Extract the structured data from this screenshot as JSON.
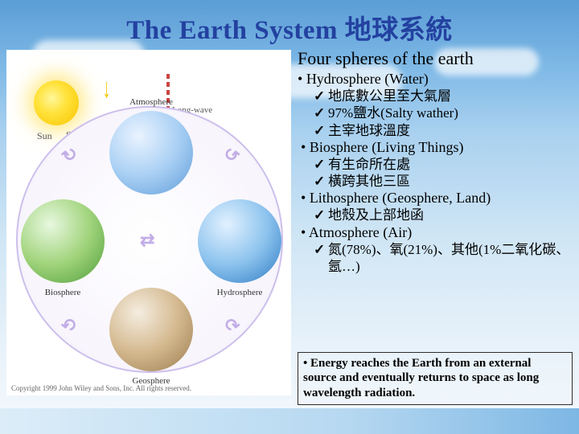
{
  "title": "The Earth System 地球系統",
  "diagram": {
    "type": "infographic",
    "aspect": "square-in-rect",
    "background_color": "#ffffff",
    "ring_border_color": "#cdbfec",
    "ring_fill_colors": [
      "#ffffff",
      "#f4f0fb"
    ],
    "arrow_color": "#c2aee6",
    "sun": {
      "label": "Sun",
      "colors": [
        "#fff79a",
        "#ffe23a",
        "#f8c400"
      ],
      "glow": "#ffdc3c"
    },
    "shortwave": {
      "label": "Short-wave\nradiation",
      "arrow_color": "#f7c600"
    },
    "longwave": {
      "label": "Long-wave\nradiation",
      "arrow_color": "#cc4444"
    },
    "nodes": [
      {
        "id": "atmosphere",
        "label": "Atmosphere",
        "pos": "top",
        "colors": [
          "#e9f3ff",
          "#aad0f4",
          "#5d9bd8"
        ]
      },
      {
        "id": "biosphere",
        "label": "Biosphere",
        "pos": "left",
        "colors": [
          "#e8f8e0",
          "#a1d47c",
          "#4f9c3a"
        ]
      },
      {
        "id": "hydrosphere",
        "label": "Hydrosphere",
        "pos": "right",
        "colors": [
          "#e2f1ff",
          "#8ec4ee",
          "#2c79c3"
        ]
      },
      {
        "id": "geosphere",
        "label": "Geosphere",
        "pos": "bottom",
        "colors": [
          "#f5ede0",
          "#d4b98f",
          "#9a7c4e"
        ]
      }
    ],
    "edges": [
      {
        "from": "atmosphere",
        "to": "biosphere",
        "bidir": true
      },
      {
        "from": "atmosphere",
        "to": "hydrosphere",
        "bidir": true
      },
      {
        "from": "biosphere",
        "to": "geosphere",
        "bidir": true
      },
      {
        "from": "hydrosphere",
        "to": "geosphere",
        "bidir": true
      },
      {
        "from": "biosphere",
        "to": "hydrosphere",
        "bidir": true
      }
    ],
    "copyright": "Copyright 1999 John Wiley and Sons, Inc. All rights reserved."
  },
  "content": {
    "heading": "Four spheres of the earth",
    "spheres": [
      {
        "title": "Hydrosphere (Water)",
        "items": [
          "地底數公里至大氣層",
          "97%鹽水(Salty wather)",
          "主宰地球溫度"
        ]
      },
      {
        "title": "Biosphere (Living Things)",
        "items": [
          "有生命所在處",
          "橫跨其他三區"
        ]
      },
      {
        "title": "Lithosphere (Geosphere, Land)",
        "items": [
          "地殼及上部地函"
        ]
      },
      {
        "title": "Atmosphere (Air)",
        "items": [
          "氮(78%)、氧(21%)、其他(1%二氧化碳、氬…)"
        ]
      }
    ]
  },
  "energy_note": "Energy reaches the Earth from an external source and eventually returns to space as long wavelength radiation.",
  "style": {
    "title_color": "#2341a0",
    "title_fontsize": 33,
    "h1_fontsize": 22,
    "h2_fontsize": 18,
    "chk_fontsize": 17,
    "body_font": "Times New Roman / PMingLiU",
    "bg_gradient": [
      "#5b9dd5",
      "#7db8e6",
      "#a8d0ef",
      "#d0e6f5",
      "#e8f2fa",
      "#f4f9fc"
    ],
    "box_border": "#2b2b2b"
  }
}
